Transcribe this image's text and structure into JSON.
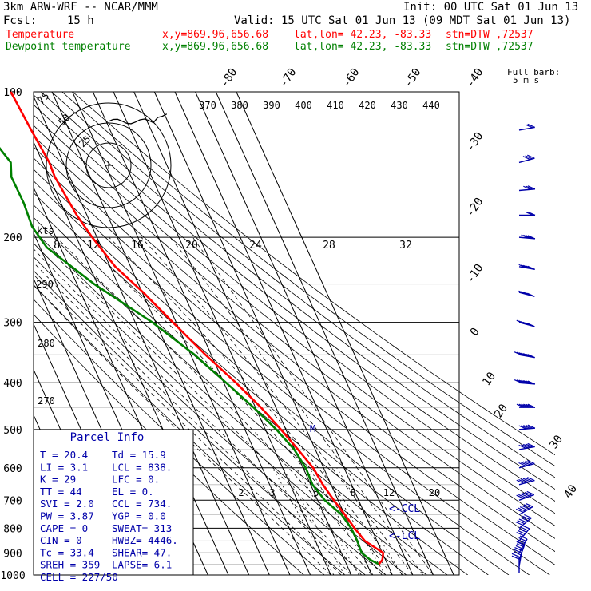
{
  "header": {
    "model": "3km ARW-WRF -- NCAR/MMM",
    "init": "Init: 00 UTC Sat 01 Jun 13",
    "fcst_label": "Fcst:",
    "fcst_value": "15 h",
    "valid": "Valid: 15 UTC Sat 01 Jun 13 (09 MDT Sat 01 Jun 13)",
    "rows": [
      {
        "label": "Temperature",
        "coords": "x,y=869.96,656.68",
        "latlon": "lat,lon= 42.23, -83.33",
        "stn": "stn=DTW ,72537",
        "color": "#ff0000"
      },
      {
        "label": "Dewpoint temperature",
        "coords": "x,y=869.96,656.68",
        "latlon": "lat,lon= 42.23, -83.33",
        "stn": "stn=DTW ,72537",
        "color": "#008000"
      }
    ],
    "barb_legend_1": "Full barb:",
    "barb_legend_2": "5 m s"
  },
  "chart_data": {
    "type": "skew-t",
    "pressure_axis": {
      "labels": [
        "100",
        "200",
        "300",
        "400",
        "500",
        "600",
        "700",
        "800",
        "900",
        "1000"
      ],
      "units": "hPa",
      "scale": "log"
    },
    "temperature_ticks_top": [
      "-80",
      "-70",
      "-60",
      "-50",
      "-40"
    ],
    "temperature_ticks_right": [
      "-30",
      "-20",
      "-10",
      "0",
      "10",
      "20",
      "30",
      "40"
    ],
    "theta_e_labels": [
      "370",
      "380",
      "390",
      "400",
      "410",
      "420",
      "430",
      "440"
    ],
    "dry_adiabat_labels": [
      "290",
      "280",
      "270"
    ],
    "mixing_ratio_labels": [
      "2",
      "3",
      "5",
      "8",
      "12",
      "20"
    ],
    "colors": {
      "temperature": "#ff0000",
      "dewpoint": "#008000",
      "barbs": "#0000aa",
      "parcel_info": "#0000aa"
    },
    "series": [
      {
        "name": "Temperature",
        "points": [
          [
            100,
            -60.1
          ],
          [
            120,
            -58.5
          ],
          [
            140,
            -56.8
          ],
          [
            150,
            -57.3
          ],
          [
            180,
            -55.0
          ],
          [
            200,
            -52.3
          ],
          [
            230,
            -47.5
          ],
          [
            260,
            -39.5
          ],
          [
            300,
            -31.6
          ],
          [
            350,
            -22.8
          ],
          [
            400,
            -14.1
          ],
          [
            450,
            -7.3
          ],
          [
            500,
            -2.4
          ],
          [
            550,
            1.5
          ],
          [
            600,
            4.9
          ],
          [
            650,
            6.0
          ],
          [
            700,
            7.9
          ],
          [
            750,
            10.1
          ],
          [
            800,
            11.9
          ],
          [
            850,
            14.1
          ],
          [
            900,
            20.4
          ],
          [
            930,
            18.5
          ],
          [
            950,
            15.8
          ]
        ]
      },
      {
        "name": "Dewpoint temperature",
        "points": [
          [
            100,
            -82.5
          ],
          [
            110,
            -81.2
          ],
          [
            120,
            -80.8
          ],
          [
            140,
            -75.6
          ],
          [
            150,
            -78.5
          ],
          [
            170,
            -78.2
          ],
          [
            190,
            -79.3
          ],
          [
            210,
            -76.7
          ],
          [
            250,
            -61.5
          ],
          [
            300,
            -41.6
          ],
          [
            350,
            -28.1
          ],
          [
            400,
            -18.9
          ],
          [
            450,
            -10.9
          ],
          [
            500,
            -4.6
          ],
          [
            550,
            -0.3
          ],
          [
            600,
            1.3
          ],
          [
            650,
            0.9
          ],
          [
            700,
            3.5
          ],
          [
            750,
            8.5
          ],
          [
            800,
            10.2
          ],
          [
            850,
            10.4
          ],
          [
            900,
            9.9
          ],
          [
            930,
            12.5
          ],
          [
            950,
            15.9
          ]
        ]
      }
    ],
    "levels": [
      {
        "label": "M",
        "p": 505,
        "color": "#0000aa"
      },
      {
        "label": "<-CCL",
        "p": 734,
        "color": "#0000aa"
      },
      {
        "label": "<-LCL",
        "p": 838,
        "color": "#0000aa"
      }
    ],
    "hodograph": {
      "ring_labels": [
        "25",
        "50",
        "75"
      ],
      "kts_label": "kts",
      "speed_labels": [
        "8",
        "12",
        "16",
        "20",
        "24",
        "28",
        "32"
      ],
      "trace": [
        [
          0,
          0
        ],
        [
          2,
          1
        ],
        [
          4,
          2
        ],
        [
          6,
          4
        ],
        [
          8,
          5
        ],
        [
          10,
          6
        ],
        [
          12,
          7
        ],
        [
          14,
          6
        ],
        [
          16,
          8
        ],
        [
          18,
          5
        ],
        [
          20,
          6
        ],
        [
          22,
          7
        ],
        [
          24,
          8
        ],
        [
          26,
          3
        ]
      ]
    },
    "wind_barbs": [
      {
        "p": 120,
        "dir": 260,
        "spd": 2
      },
      {
        "p": 140,
        "dir": 255,
        "spd": 3
      },
      {
        "p": 160,
        "dir": 265,
        "spd": 3
      },
      {
        "p": 180,
        "dir": 270,
        "spd": 2
      },
      {
        "p": 200,
        "dir": 275,
        "spd": 4
      },
      {
        "p": 230,
        "dir": 280,
        "spd": 5
      },
      {
        "p": 260,
        "dir": 285,
        "spd": 5
      },
      {
        "p": 300,
        "dir": 285,
        "spd": 6
      },
      {
        "p": 350,
        "dir": 280,
        "spd": 7
      },
      {
        "p": 400,
        "dir": 275,
        "spd": 7
      },
      {
        "p": 450,
        "dir": 270,
        "spd": 6
      },
      {
        "p": 500,
        "dir": 265,
        "spd": 5
      },
      {
        "p": 550,
        "dir": 260,
        "spd": 5
      },
      {
        "p": 600,
        "dir": 255,
        "spd": 5
      },
      {
        "p": 650,
        "dir": 255,
        "spd": 6
      },
      {
        "p": 700,
        "dir": 250,
        "spd": 6
      },
      {
        "p": 750,
        "dir": 240,
        "spd": 6
      },
      {
        "p": 800,
        "dir": 230,
        "spd": 6
      },
      {
        "p": 850,
        "dir": 220,
        "spd": 5
      },
      {
        "p": 900,
        "dir": 210,
        "spd": 4
      },
      {
        "p": 930,
        "dir": 200,
        "spd": 3
      },
      {
        "p": 960,
        "dir": 190,
        "spd": 3
      },
      {
        "p": 990,
        "dir": 180,
        "spd": 2
      }
    ],
    "parcel_info": {
      "title": "Parcel Info",
      "rows": [
        [
          "T  =  20.4",
          "Td =  15.9"
        ],
        [
          "LI =   3.1",
          "LCL =  838."
        ],
        [
          "K  =    29",
          "LFC =     0."
        ],
        [
          "TT =    44",
          "EL  =     0."
        ],
        [
          "SVI =  2.0",
          "CCL =  734."
        ],
        [
          "PW =  3.87",
          "YGP =   0.0"
        ],
        [
          "CAPE =   0",
          "SWEAT=  313"
        ],
        [
          "CIN =    0",
          "HWBZ= 4446."
        ],
        [
          "Tc =  33.4",
          "SHEAR=  47."
        ],
        [
          "SREH =  359",
          "LAPSE=  6.1"
        ],
        [
          "CELL = 227/50",
          ""
        ]
      ]
    }
  }
}
